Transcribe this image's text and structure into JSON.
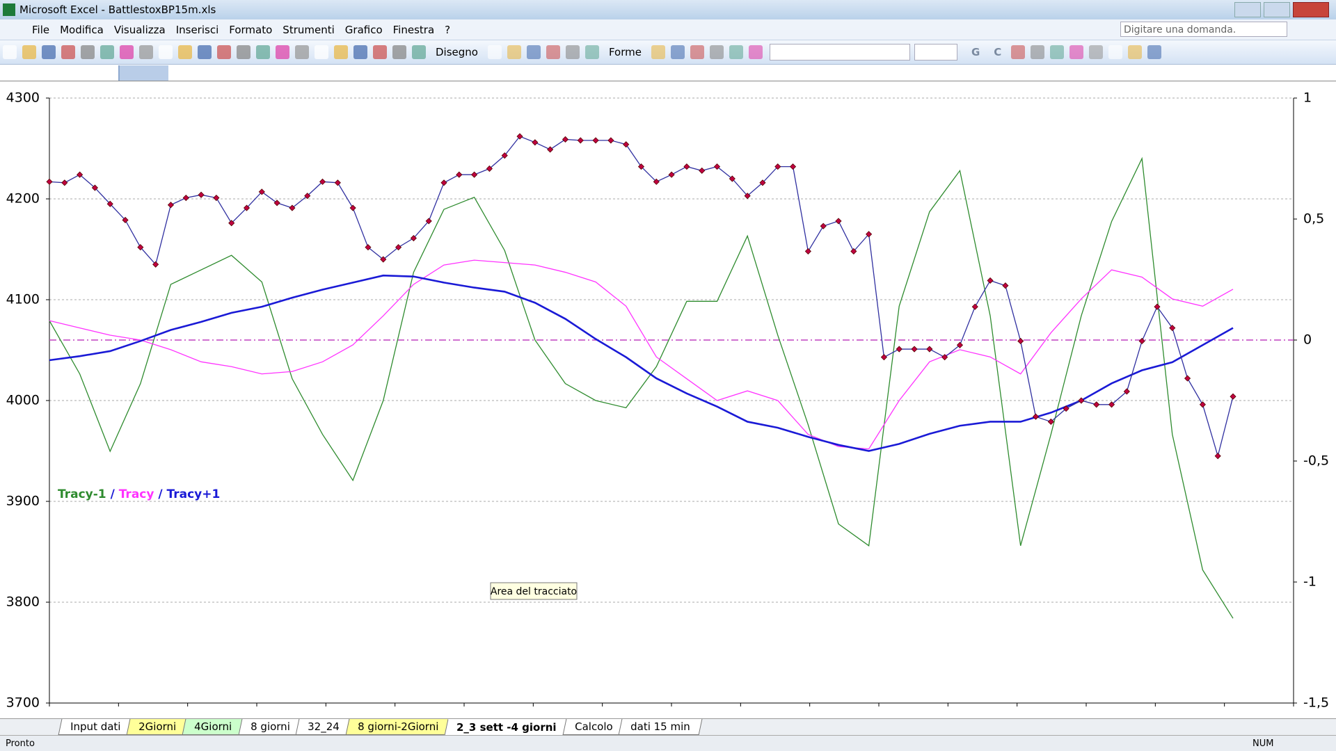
{
  "window": {
    "title": "Microsoft Excel - BattlestoxBP15m.xls"
  },
  "menu": [
    "File",
    "Modifica",
    "Visualizza",
    "Inserisci",
    "Formato",
    "Strumenti",
    "Grafico",
    "Finestra",
    "?"
  ],
  "help_box": "Digitare una domanda.",
  "drawing_toolbar": [
    "Disegno",
    "Forme"
  ],
  "format_buttons": [
    "G",
    "C"
  ],
  "tooltip": "Area del tracciato",
  "sheet_tabs": [
    {
      "label": "Input dati",
      "color": "#ffffff"
    },
    {
      "label": "2Giorni",
      "color": "#ffff99"
    },
    {
      "label": "4Giorni",
      "color": "#ccffcc"
    },
    {
      "label": "8 giorni",
      "color": "#ffffff"
    },
    {
      "label": "32_24",
      "color": "#ffffff"
    },
    {
      "label": "8 giorni-2Giorni",
      "color": "#ffff99"
    },
    {
      "label": "2_3 sett -4 giorni",
      "color": "#ffffff"
    },
    {
      "label": "Calcolo",
      "color": "#ffffff"
    },
    {
      "label": "dati 15 min",
      "color": "#ffffff"
    }
  ],
  "active_tab": 6,
  "status": {
    "left": "Pronto",
    "right": "NUM"
  },
  "chart_data": {
    "type": "line",
    "ylim": [
      3700,
      4300
    ],
    "yticks": [
      3700,
      3800,
      3900,
      4000,
      4100,
      4200,
      4300
    ],
    "y2lim": [
      -1.5,
      1
    ],
    "y2ticks": [
      {
        "value": -1.5,
        "label": "-1,5"
      },
      -1,
      {
        "value": -0.5,
        "label": "-0,5"
      },
      0,
      {
        "value": 0.5,
        "label": "0,5"
      },
      1
    ],
    "y2_reference_line": 0,
    "grid": true,
    "legend_separator": "/",
    "series": [
      {
        "color": "#c00040",
        "markers": true,
        "values": [
          4217,
          4216,
          4224,
          4211,
          4195,
          4179,
          4152,
          4135,
          4194,
          4201,
          4204,
          4201,
          4176,
          4191,
          4207,
          4196,
          4191,
          4203,
          4217,
          4216,
          4191,
          4152,
          4140,
          4152,
          4161,
          4178,
          4216,
          4224,
          4224,
          4230,
          4243,
          4262,
          4256,
          4249,
          4259,
          4258,
          4258,
          4258,
          4254,
          4232,
          4217,
          4224,
          4232,
          4228,
          4232,
          4220,
          4203,
          4216,
          4232,
          4232,
          4148,
          4173,
          4178,
          4148,
          4165,
          4043,
          4051,
          4051,
          4051,
          4043,
          4055,
          4093,
          4119,
          4114,
          4059,
          3984,
          3979,
          3992,
          4000,
          3996,
          3996,
          4009,
          4059,
          4093,
          4072,
          4022,
          3996,
          3945,
          4004
        ]
      },
      {
        "name": "Tracy-1",
        "color": "#2e8b2e",
        "axis": "y2",
        "values": [
          0.08,
          -0.14,
          -0.46,
          -0.18,
          0.23,
          0.29,
          0.35,
          0.24,
          -0.16,
          -0.39,
          -0.58,
          -0.25,
          0.28,
          0.54,
          0.59,
          0.37,
          0.0,
          -0.18,
          -0.25,
          -0.28,
          -0.11,
          0.16,
          0.16,
          0.43,
          0.02,
          -0.35,
          -0.76,
          -0.85,
          0.14,
          0.53,
          0.7,
          0.1,
          -0.85,
          -0.39,
          0.1,
          0.49,
          0.75,
          -0.39,
          -0.95,
          -1.15
        ]
      },
      {
        "name": "Tracy",
        "color": "#ff33ff",
        "axis": "y2",
        "values": [
          0.08,
          0.05,
          0.02,
          0.0,
          -0.04,
          -0.09,
          -0.11,
          -0.14,
          -0.13,
          -0.09,
          -0.02,
          0.1,
          0.23,
          0.31,
          0.33,
          0.32,
          0.31,
          0.28,
          0.24,
          0.14,
          -0.07,
          -0.16,
          -0.25,
          -0.21,
          -0.25,
          -0.39,
          -0.44,
          -0.45,
          -0.25,
          -0.09,
          -0.04,
          -0.07,
          -0.14,
          0.03,
          0.17,
          0.29,
          0.26,
          0.17,
          0.14,
          0.21
        ]
      },
      {
        "name": "Tracy+1",
        "color": "#1a1ad6",
        "values": [
          4040,
          4044,
          4049,
          4059,
          4070,
          4078,
          4087,
          4093,
          4102,
          4110,
          4117,
          4124,
          4123,
          4117,
          4112,
          4108,
          4097,
          4081,
          4061,
          4043,
          4022,
          4007,
          3994,
          3979,
          3973,
          3964,
          3956,
          3950,
          3957,
          3967,
          3975,
          3979,
          3979,
          3988,
          4000,
          4017,
          4030,
          4038,
          4055,
          4072
        ]
      }
    ]
  }
}
